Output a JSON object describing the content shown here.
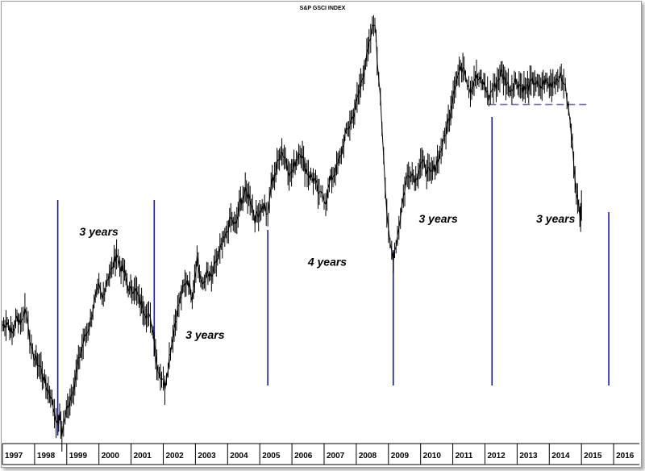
{
  "chart_data": {
    "type": "line",
    "title": "S&P GSCI INDEX",
    "xlabel": "",
    "ylabel": "",
    "x_tick_labels": [
      "1997",
      "1998",
      "1999",
      "2000",
      "2001",
      "2002",
      "2003",
      "2004",
      "2005",
      "2006",
      "2007",
      "2008",
      "2009",
      "2010",
      "2011",
      "2012",
      "2013",
      "2014",
      "2015",
      "2016"
    ],
    "xlim": [
      1997.0,
      2016.8
    ],
    "ylim": [
      0,
      100
    ],
    "grid": false,
    "legend": "none",
    "colors": {
      "price": "#000000",
      "cycle_line": "#1a1aa0",
      "support_line": "#7a6fb0"
    },
    "series": [
      {
        "values": [
          [
            1997.0,
            27
          ],
          [
            1997.15,
            28
          ],
          [
            1997.3,
            25
          ],
          [
            1997.45,
            29
          ],
          [
            1997.6,
            28
          ],
          [
            1997.7,
            31
          ],
          [
            1997.8,
            28
          ],
          [
            1997.9,
            21
          ],
          [
            1998.05,
            19
          ],
          [
            1998.2,
            17
          ],
          [
            1998.35,
            13
          ],
          [
            1998.5,
            11
          ],
          [
            1998.62,
            7
          ],
          [
            1998.72,
            4
          ],
          [
            1998.78,
            6
          ],
          [
            1998.85,
            2
          ],
          [
            1998.95,
            6
          ],
          [
            1999.1,
            10
          ],
          [
            1999.25,
            14
          ],
          [
            1999.4,
            20
          ],
          [
            1999.55,
            24
          ],
          [
            1999.7,
            27
          ],
          [
            1999.85,
            32
          ],
          [
            2000.0,
            36
          ],
          [
            2000.1,
            33
          ],
          [
            2000.25,
            38
          ],
          [
            2000.4,
            40
          ],
          [
            2000.55,
            44
          ],
          [
            2000.65,
            41
          ],
          [
            2000.8,
            39
          ],
          [
            2000.95,
            35
          ],
          [
            2001.1,
            36
          ],
          [
            2001.25,
            33
          ],
          [
            2001.4,
            31
          ],
          [
            2001.55,
            29
          ],
          [
            2001.65,
            27
          ],
          [
            2001.72,
            24
          ],
          [
            2001.8,
            18
          ],
          [
            2001.95,
            15
          ],
          [
            2002.05,
            13
          ],
          [
            2002.15,
            18
          ],
          [
            2002.3,
            25
          ],
          [
            2002.45,
            31
          ],
          [
            2002.6,
            35
          ],
          [
            2002.75,
            38
          ],
          [
            2002.9,
            34
          ],
          [
            2003.05,
            43
          ],
          [
            2003.2,
            36
          ],
          [
            2003.35,
            39
          ],
          [
            2003.5,
            38
          ],
          [
            2003.65,
            42
          ],
          [
            2003.8,
            45
          ],
          [
            2003.95,
            48
          ],
          [
            2004.1,
            52
          ],
          [
            2004.25,
            50
          ],
          [
            2004.4,
            56
          ],
          [
            2004.55,
            58
          ],
          [
            2004.7,
            57
          ],
          [
            2004.85,
            52
          ],
          [
            2005.0,
            54
          ],
          [
            2005.15,
            55
          ],
          [
            2005.25,
            52
          ],
          [
            2005.35,
            60
          ],
          [
            2005.5,
            63
          ],
          [
            2005.65,
            68
          ],
          [
            2005.8,
            66
          ],
          [
            2005.95,
            62
          ],
          [
            2006.1,
            65
          ],
          [
            2006.25,
            68
          ],
          [
            2006.4,
            64
          ],
          [
            2006.55,
            62
          ],
          [
            2006.7,
            61
          ],
          [
            2006.85,
            57
          ],
          [
            2006.95,
            58
          ],
          [
            2007.05,
            56
          ],
          [
            2007.2,
            61
          ],
          [
            2007.35,
            63
          ],
          [
            2007.5,
            66
          ],
          [
            2007.65,
            71
          ],
          [
            2007.8,
            74
          ],
          [
            2007.95,
            77
          ],
          [
            2008.1,
            82
          ],
          [
            2008.25,
            87
          ],
          [
            2008.4,
            92
          ],
          [
            2008.5,
            96
          ],
          [
            2008.58,
            98
          ],
          [
            2008.65,
            89
          ],
          [
            2008.75,
            81
          ],
          [
            2008.85,
            67
          ],
          [
            2008.95,
            52
          ],
          [
            2009.05,
            46
          ],
          [
            2009.15,
            43
          ],
          [
            2009.28,
            48
          ],
          [
            2009.42,
            55
          ],
          [
            2009.55,
            61
          ],
          [
            2009.7,
            63
          ],
          [
            2009.85,
            61
          ],
          [
            2010.0,
            65
          ],
          [
            2010.15,
            64
          ],
          [
            2010.3,
            62
          ],
          [
            2010.45,
            64
          ],
          [
            2010.6,
            67
          ],
          [
            2010.75,
            71
          ],
          [
            2010.9,
            76
          ],
          [
            2011.05,
            83
          ],
          [
            2011.2,
            86
          ],
          [
            2011.35,
            88
          ],
          [
            2011.45,
            84
          ],
          [
            2011.55,
            82
          ],
          [
            2011.7,
            85
          ],
          [
            2011.85,
            84
          ],
          [
            2012.0,
            83
          ],
          [
            2012.12,
            80
          ],
          [
            2012.22,
            82
          ],
          [
            2012.35,
            83
          ],
          [
            2012.5,
            86
          ],
          [
            2012.65,
            84
          ],
          [
            2012.8,
            82
          ],
          [
            2012.95,
            84
          ],
          [
            2013.1,
            83
          ],
          [
            2013.25,
            82
          ],
          [
            2013.4,
            83
          ],
          [
            2013.55,
            84
          ],
          [
            2013.7,
            82
          ],
          [
            2013.85,
            84
          ],
          [
            2014.0,
            83
          ],
          [
            2014.15,
            84
          ],
          [
            2014.3,
            85
          ],
          [
            2014.45,
            84
          ],
          [
            2014.55,
            80
          ],
          [
            2014.65,
            74
          ],
          [
            2014.72,
            69
          ],
          [
            2014.8,
            62
          ],
          [
            2014.88,
            56
          ],
          [
            2014.95,
            52
          ],
          [
            2015.0,
            55
          ]
        ]
      }
    ],
    "cycle_markers": [
      1998.72,
      2001.72,
      2005.25,
      2009.15,
      2012.22,
      2015.85
    ],
    "support_level": {
      "y": 78.5,
      "x_start": 2012.12,
      "x_end": 2015.15
    },
    "annotations": [
      {
        "text": "3 years",
        "x": 2000.0,
        "y": 48
      },
      {
        "text": "3 years",
        "x": 2003.3,
        "y": 24
      },
      {
        "text": "4 years",
        "x": 2007.1,
        "y": 41
      },
      {
        "text": "3 years",
        "x": 2010.55,
        "y": 51
      },
      {
        "text": "3 years",
        "x": 2014.2,
        "y": 51
      }
    ]
  }
}
